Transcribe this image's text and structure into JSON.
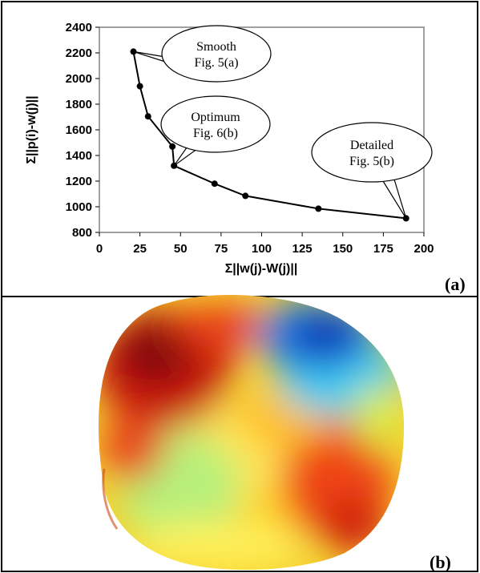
{
  "panels": {
    "a_label": "(a)",
    "b_label": "(b)"
  },
  "chart_data": {
    "type": "line",
    "xlabel": "Σ||w(j)-W(j)||",
    "ylabel": "Σ||p(i)-w(j)||",
    "xlim": [
      0,
      200
    ],
    "ylim": [
      800,
      2400
    ],
    "xticks": [
      0,
      25,
      50,
      75,
      100,
      125,
      150,
      175,
      200
    ],
    "yticks": [
      800,
      1000,
      1200,
      1400,
      1600,
      1800,
      2000,
      2200,
      2400
    ],
    "grid": false,
    "markers": true,
    "series": [
      {
        "x": [
          21,
          25,
          30,
          45,
          46,
          71,
          90,
          135,
          189
        ],
        "y": [
          2210,
          1940,
          1705,
          1470,
          1320,
          1180,
          1085,
          985,
          910
        ]
      }
    ],
    "annotations": [
      {
        "lines": [
          "Smooth",
          "Fig. 5(a)"
        ],
        "x": 21,
        "y": 2210
      },
      {
        "lines": [
          "Optimum",
          "Fig. 6(b)"
        ],
        "x": 46,
        "y": 1320
      },
      {
        "lines": [
          "Detailed",
          "Fig. 5(b)"
        ],
        "x": 189,
        "y": 910
      }
    ]
  },
  "image_b": {
    "description_colors": {
      "red": "#c8180e",
      "dark_red": "#8c0a0a",
      "yellow": "#ffe63a",
      "green": "#a8f070",
      "cyan": "#4ad6ef",
      "blue": "#0a2ec8"
    }
  }
}
